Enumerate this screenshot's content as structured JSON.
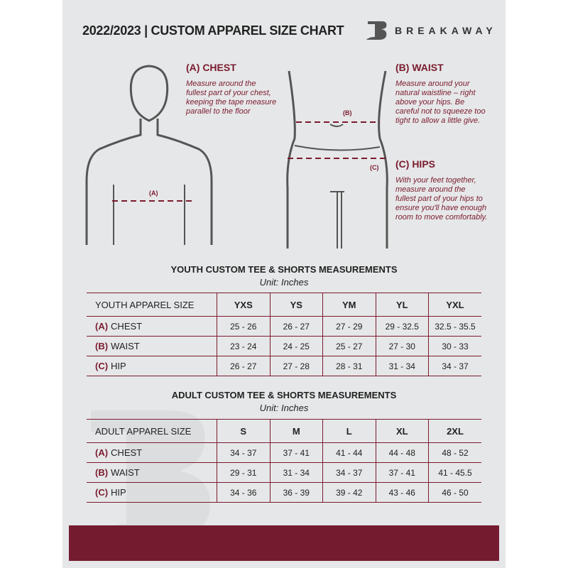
{
  "header": {
    "title": "2022/2023  |  CUSTOM APPAREL SIZE CHART",
    "brand": "BREAKAWAY"
  },
  "chest": {
    "heading": "(A) CHEST",
    "text": "Measure around the fullest part of your chest, keeping the tape measure parallel to the floor",
    "marker": "(A)"
  },
  "waist": {
    "heading": "(B) WAIST",
    "text": "Measure around your natural waistline – right above your hips. Be careful not to squeeze too tight to allow a little give.",
    "marker": "(B)"
  },
  "hips": {
    "heading": "(C) HIPS",
    "text": "With your feet together, measure around the fullest part of your hips to ensure you'll have enough room to move comfortably.",
    "marker": "(C)"
  },
  "youth": {
    "title": "YOUTH CUSTOM TEE & SHORTS MEASUREMENTS",
    "unit": "Unit: Inches",
    "size_label": "YOUTH APPAREL SIZE",
    "sizes": [
      "YXS",
      "YS",
      "YM",
      "YL",
      "YXL"
    ],
    "rows": [
      {
        "code": "(A)",
        "name": "CHEST",
        "values": [
          "25 - 26",
          "26 - 27",
          "27 - 29",
          "29 - 32.5",
          "32.5 - 35.5"
        ]
      },
      {
        "code": "(B)",
        "name": "WAIST",
        "values": [
          "23 - 24",
          "24 - 25",
          "25 - 27",
          "27 - 30",
          "30 - 33"
        ]
      },
      {
        "code": "(C)",
        "name": "HIP",
        "values": [
          "26 - 27",
          "27 - 28",
          "28 - 31",
          "31 - 34",
          "34 - 37"
        ]
      }
    ]
  },
  "adult": {
    "title": "ADULT CUSTOM TEE & SHORTS MEASUREMENTS",
    "unit": "Unit: Inches",
    "size_label": "ADULT APPAREL SIZE",
    "sizes": [
      "S",
      "M",
      "L",
      "XL",
      "2XL"
    ],
    "rows": [
      {
        "code": "(A)",
        "name": "CHEST",
        "values": [
          "34 - 37",
          "37 - 41",
          "41 - 44",
          "44 - 48",
          "48 - 52"
        ]
      },
      {
        "code": "(B)",
        "name": "WAIST",
        "values": [
          "29 - 31",
          "31 - 34",
          "34 - 37",
          "37 - 41",
          "41 - 45.5"
        ]
      },
      {
        "code": "(C)",
        "name": "HIP",
        "values": [
          "34 - 36",
          "36 - 39",
          "39 - 42",
          "43 - 46",
          "46 - 50"
        ]
      }
    ]
  },
  "colors": {
    "accent": "#7a1b2f",
    "background": "#e6e7e8"
  }
}
